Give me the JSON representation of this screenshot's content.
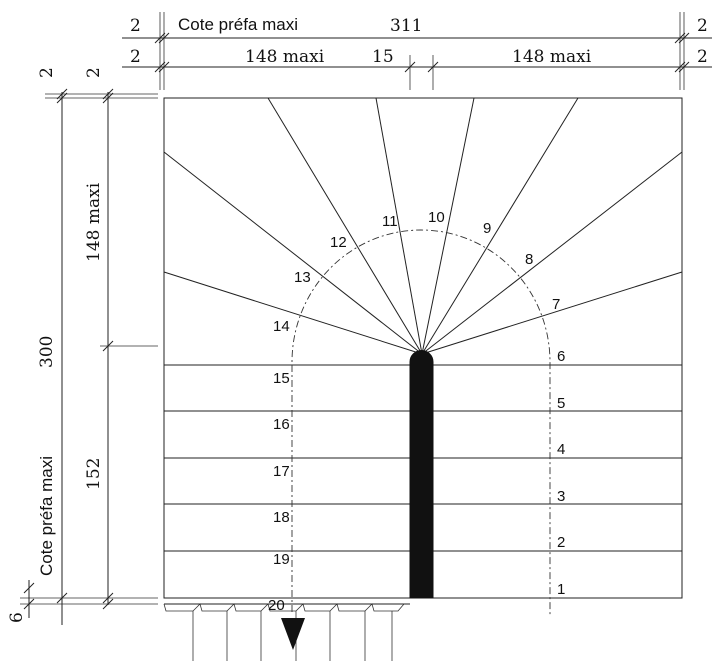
{
  "dimensions": {
    "top1_left": "2",
    "top1_label": "Cote préfa maxi",
    "top1_total": "311",
    "top1_right": "2",
    "top2_left": "2",
    "top2_seg1": "148 maxi",
    "top2_gap": "15",
    "top2_seg2": "148 maxi",
    "top2_right": "2",
    "left_top_outer": "2",
    "left_top_inner": "2",
    "left_upper": "148 maxi",
    "left_total": "300",
    "left_lower": "152",
    "left_label": "Cote préfa maxi",
    "left_bottom": "6"
  },
  "steps": [
    "1",
    "2",
    "3",
    "4",
    "5",
    "6",
    "7",
    "8",
    "9",
    "10",
    "11",
    "12",
    "13",
    "14",
    "15",
    "16",
    "17",
    "18",
    "19",
    "20"
  ]
}
